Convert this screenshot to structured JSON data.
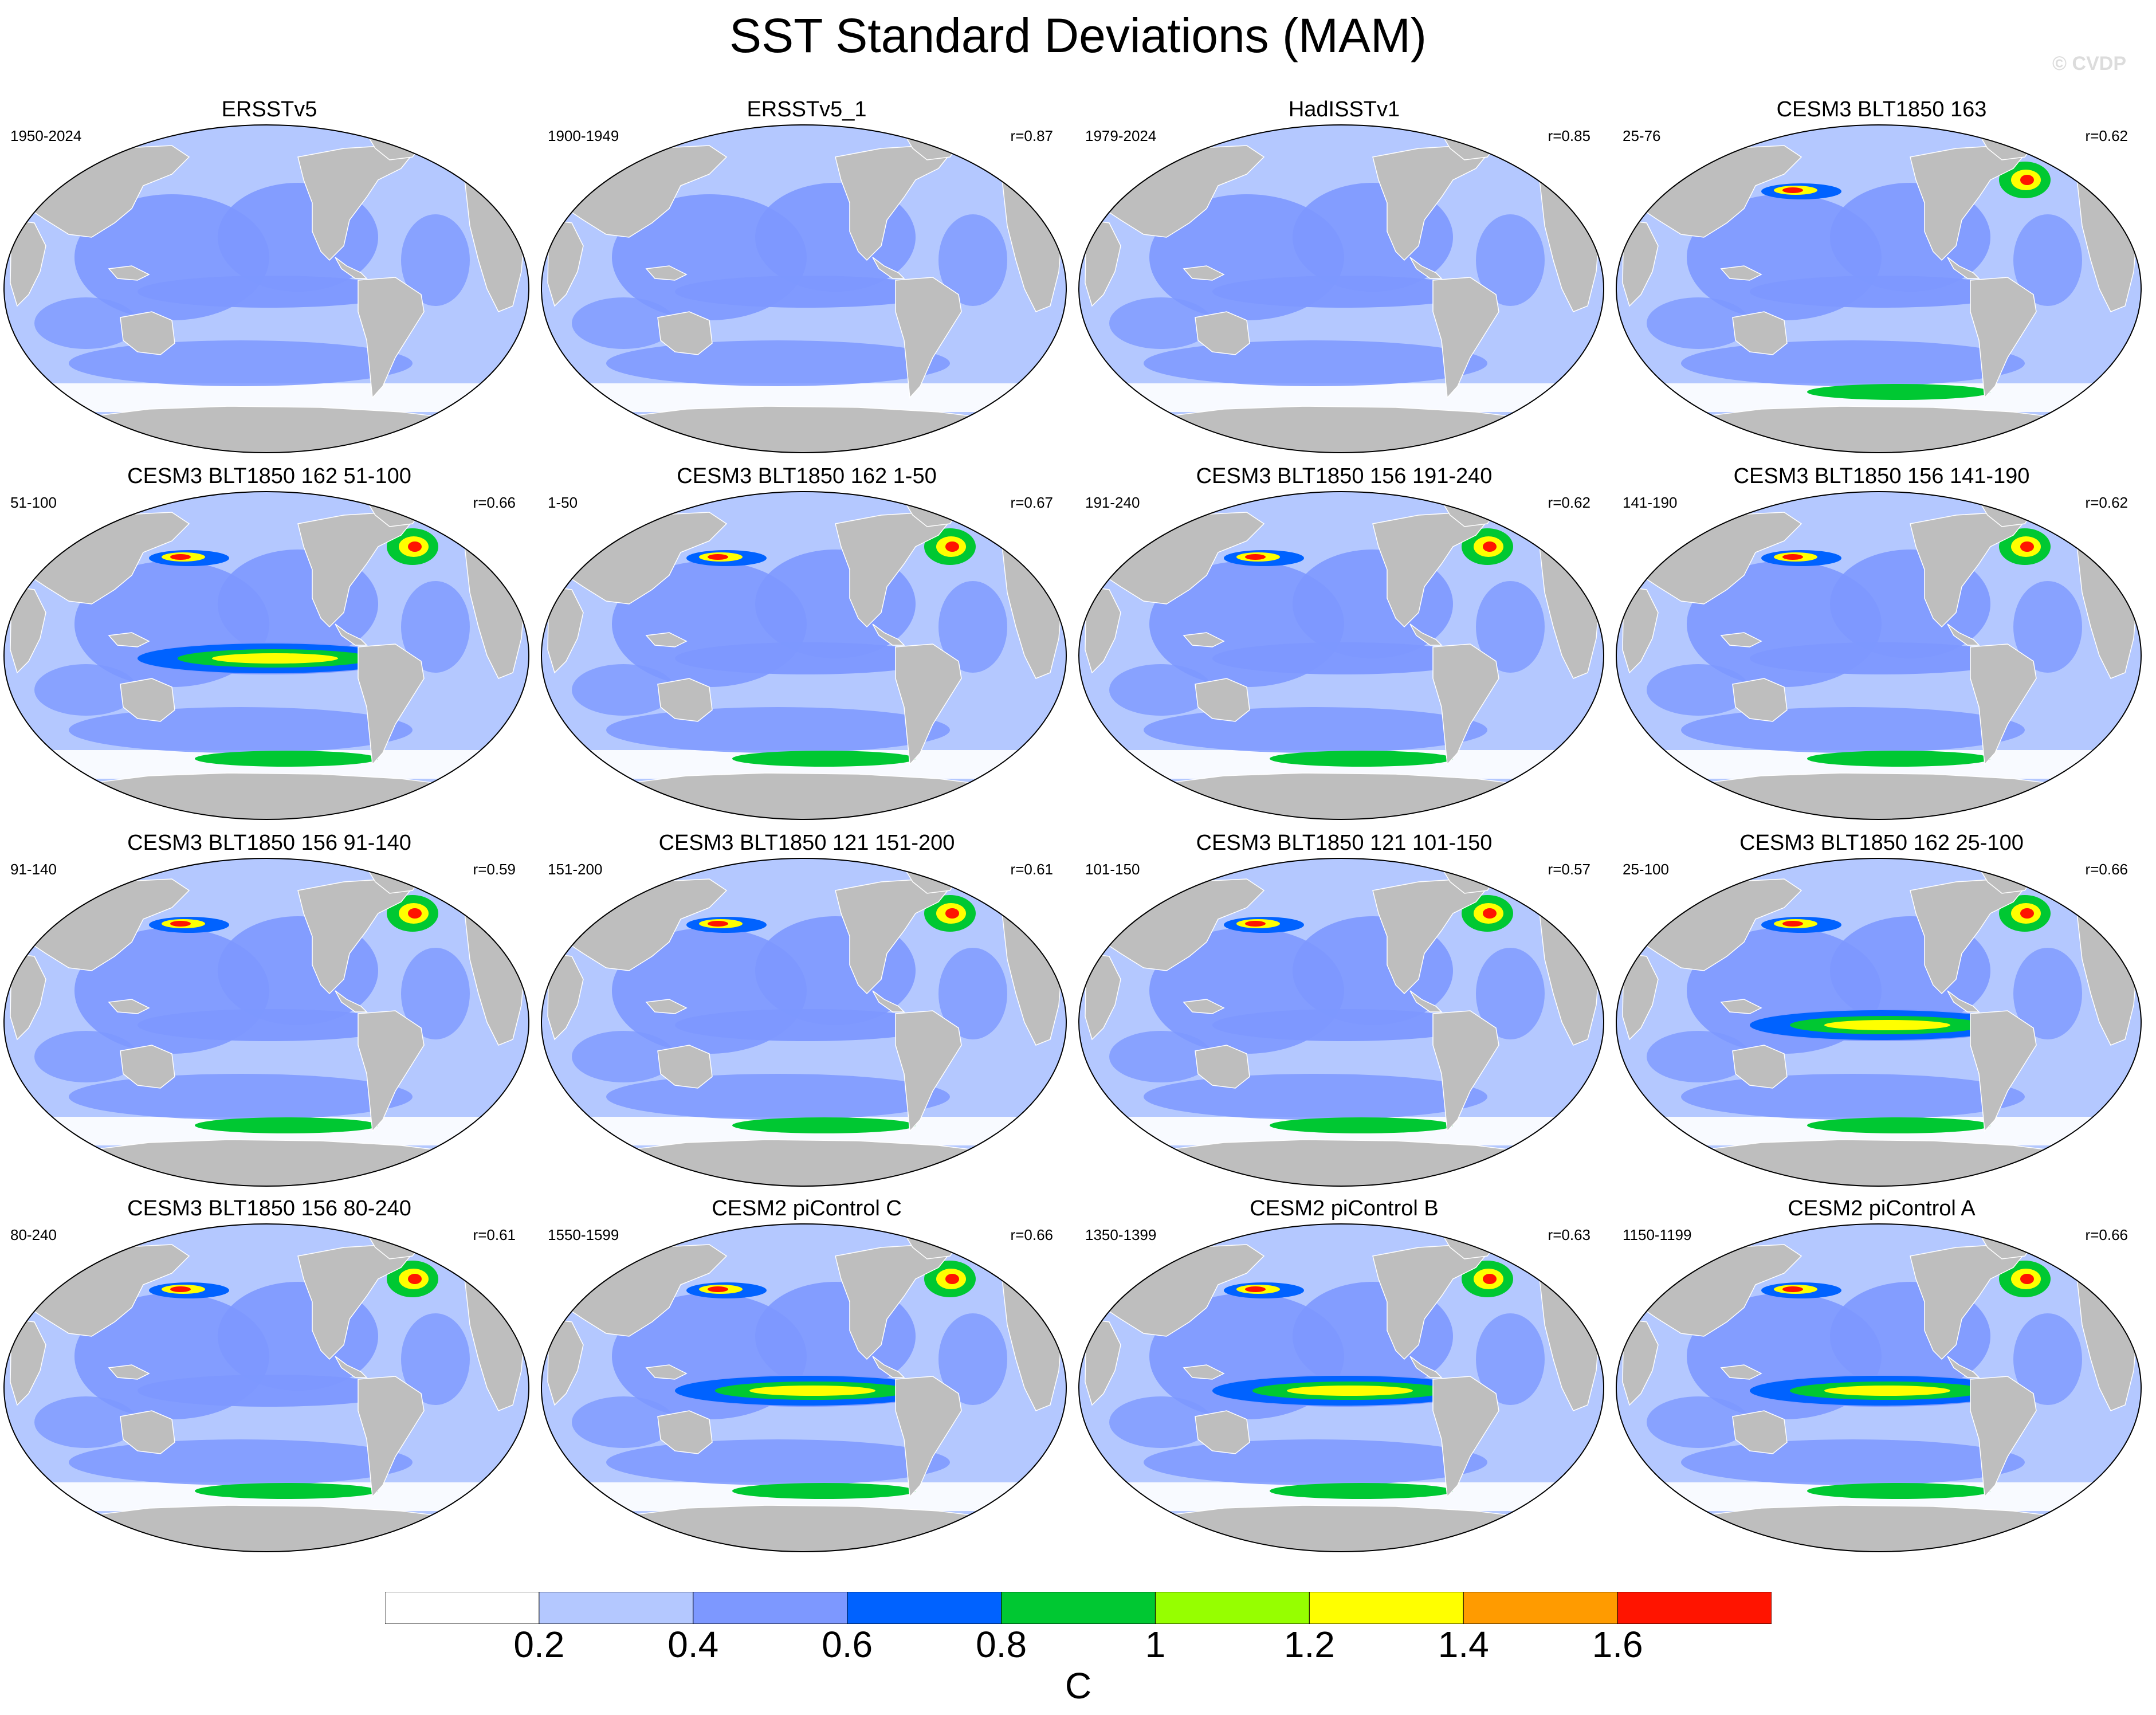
{
  "title": "SST Standard Deviations (MAM)",
  "watermark": "© CVDP",
  "units": "C",
  "colorbar": {
    "labels": [
      "0.2",
      "0.4",
      "0.6",
      "0.8",
      "1",
      "1.2",
      "1.4",
      "1.6"
    ],
    "colors": [
      "#ffffff",
      "#b4c8ff",
      "#7d98ff",
      "#0062ff",
      "#00c832",
      "#96ff00",
      "#ffff00",
      "#ff9b00",
      "#ff1400"
    ]
  },
  "land_color": "#bebebe",
  "panels": [
    {
      "title": "ERSSTv5",
      "period": "1950-2024",
      "r": ""
    },
    {
      "title": "ERSSTv5_1",
      "period": "1900-1949",
      "r": "r=0.87"
    },
    {
      "title": "HadISSTv1",
      "period": "1979-2024",
      "r": "r=0.85"
    },
    {
      "title": "CESM3 BLT1850 163",
      "period": "25-76",
      "r": "r=0.62"
    },
    {
      "title": "CESM3 BLT1850 162 51-100",
      "period": "51-100",
      "r": "r=0.66"
    },
    {
      "title": "CESM3 BLT1850 162 1-50",
      "period": "1-50",
      "r": "r=0.67"
    },
    {
      "title": "CESM3 BLT1850 156 191-240",
      "period": "191-240",
      "r": "r=0.62"
    },
    {
      "title": "CESM3 BLT1850 156 141-190",
      "period": "141-190",
      "r": "r=0.62"
    },
    {
      "title": "CESM3 BLT1850 156 91-140",
      "period": "91-140",
      "r": "r=0.59"
    },
    {
      "title": "CESM3 BLT1850 121 151-200",
      "period": "151-200",
      "r": "r=0.61"
    },
    {
      "title": "CESM3 BLT1850 121 101-150",
      "period": "101-150",
      "r": "r=0.57"
    },
    {
      "title": "CESM3 BLT1850 162 25-100",
      "period": "25-100",
      "r": "r=0.66"
    },
    {
      "title": "CESM3 BLT1850 156 80-240",
      "period": "80-240",
      "r": "r=0.61"
    },
    {
      "title": "CESM2 piControl C",
      "period": "1550-1599",
      "r": "r=0.66"
    },
    {
      "title": "CESM2 piControl B",
      "period": "1350-1399",
      "r": "r=0.63"
    },
    {
      "title": "CESM2 piControl A",
      "period": "1150-1199",
      "r": "r=0.66"
    }
  ]
}
